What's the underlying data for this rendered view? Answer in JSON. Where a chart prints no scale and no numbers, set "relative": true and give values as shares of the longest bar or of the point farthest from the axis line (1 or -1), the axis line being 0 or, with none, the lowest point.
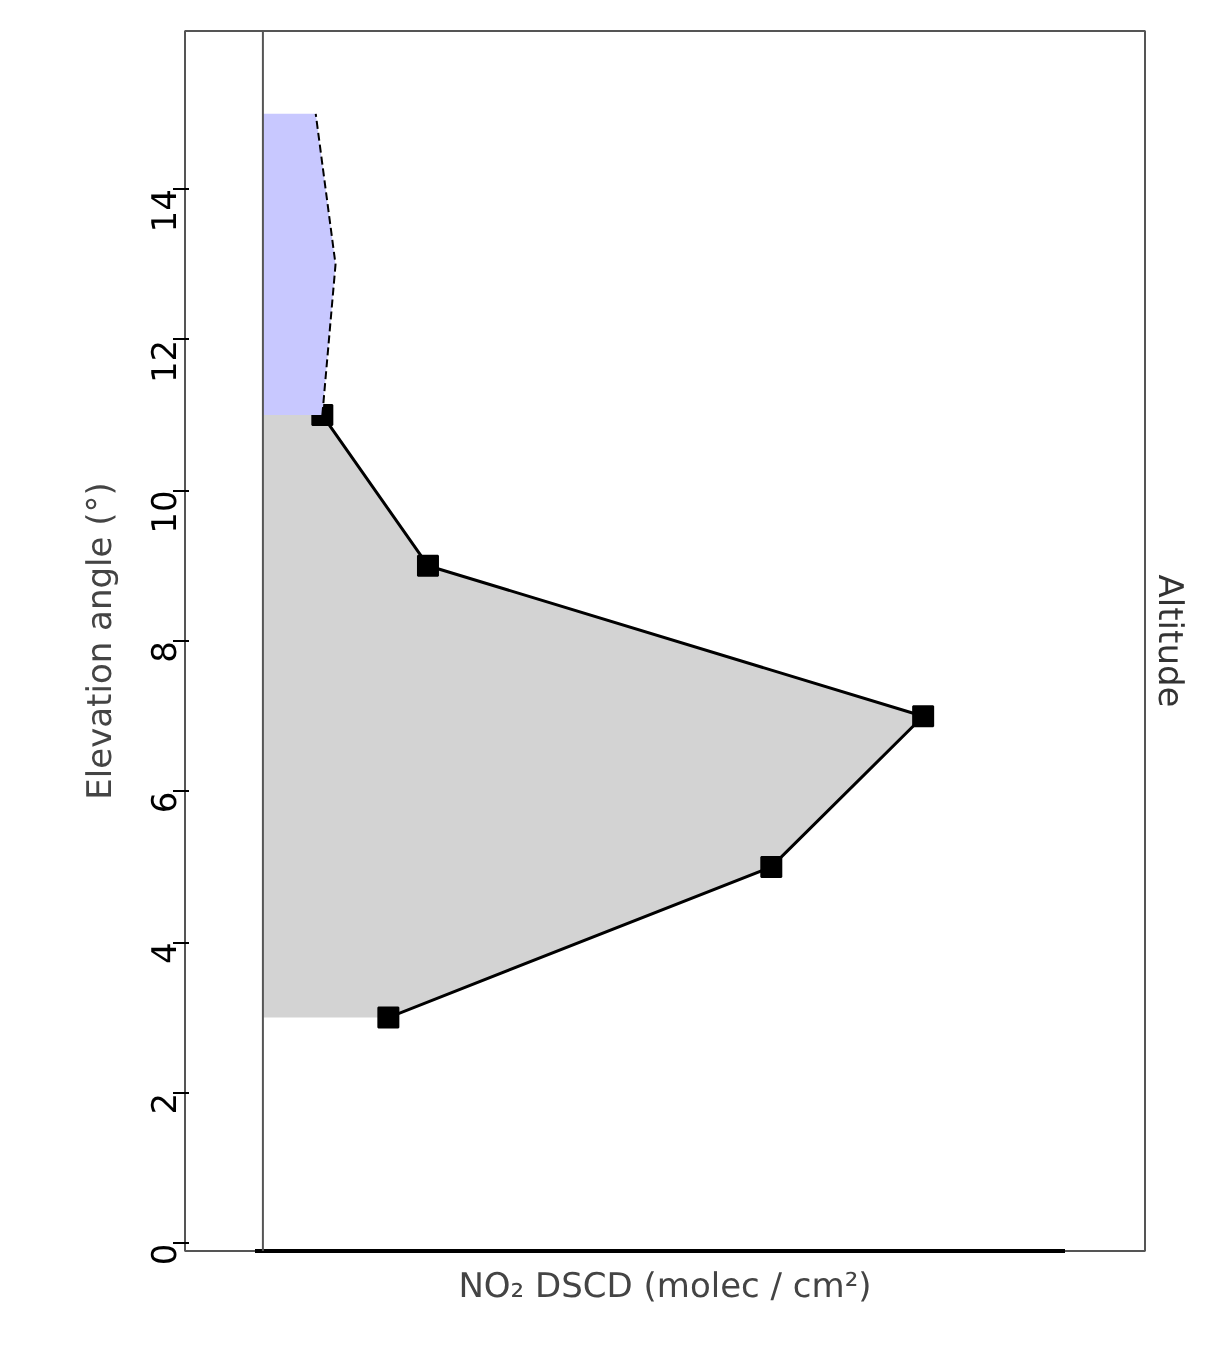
{
  "chart_data": {
    "type": "area",
    "orientation": "horizontal",
    "relative": true,
    "xlabel": "NO₂ DSCD (molec / cm²)",
    "ylabel": "Elevation angle (°)",
    "annotations": [
      "Altitude"
    ],
    "ylim": [
      -0.1,
      16.1
    ],
    "yticks": [
      0,
      2,
      4,
      6,
      8,
      10,
      12,
      14
    ],
    "series": [
      {
        "x": [
          3,
          5,
          7,
          9,
          11
        ],
        "values": [
          0.19,
          0.77,
          1,
          0.25,
          0.09
        ],
        "color": "#d3d3d3",
        "marker": "square",
        "line_style": "solid"
      },
      {
        "x": [
          11,
          13,
          15
        ],
        "values": [
          0.09,
          0.11,
          0.08
        ],
        "color": "#c8c8ff",
        "marker": "none",
        "line_style": "dashed"
      }
    ],
    "tick_labels": "y",
    "grid": false
  }
}
